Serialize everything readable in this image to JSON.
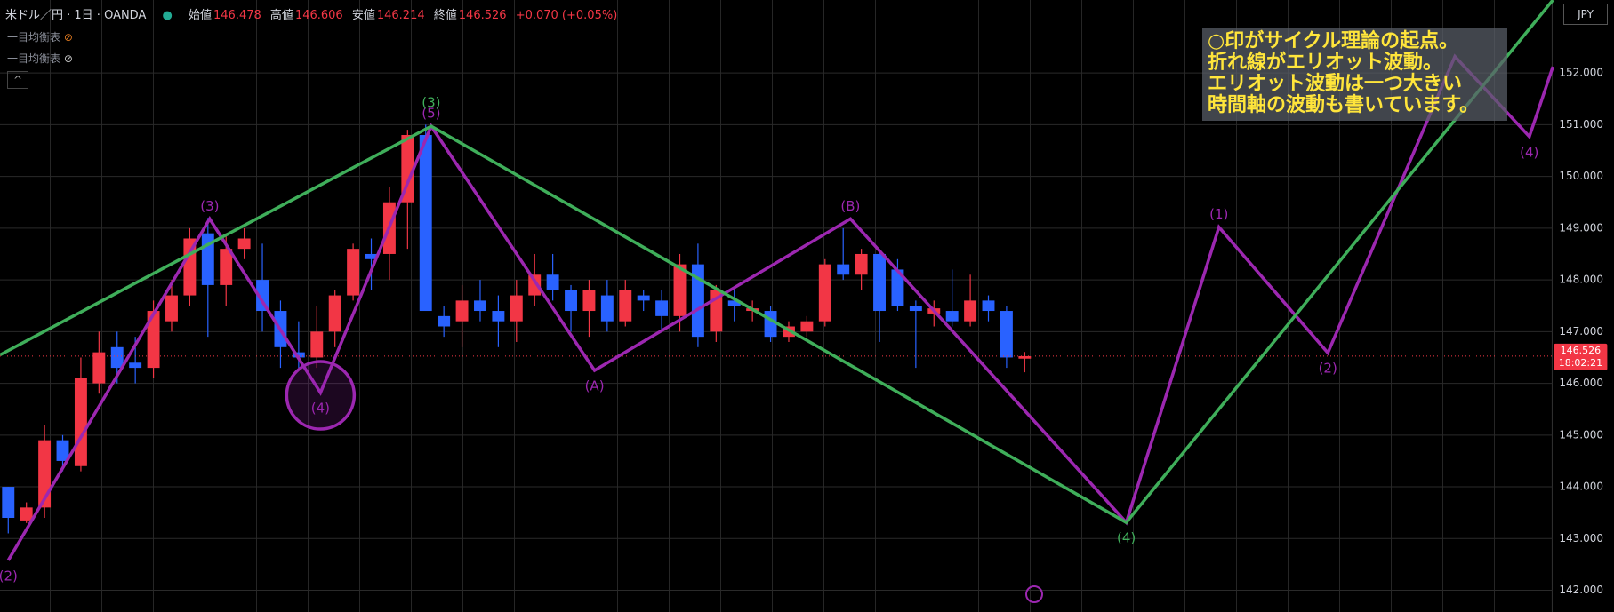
{
  "chart_data": {
    "type": "candlestick",
    "title": "米ドル／円 · 1日 · OANDA",
    "ohlc_labels": [
      "始値",
      "高値",
      "安値",
      "終値"
    ],
    "change": "+0.070 (+0.05%)",
    "indicators": [
      "一目均衡表",
      "一目均衡表"
    ],
    "currency": "JPY",
    "countdown": "18:02:21",
    "up_color": "#f23645",
    "down_color": "#2962ff",
    "open": [
      144.0,
      143.35,
      143.6,
      144.9,
      144.4,
      146.0,
      146.7,
      146.4,
      146.3,
      147.2,
      147.7,
      148.9,
      147.9,
      148.6,
      148.0,
      147.4,
      146.6,
      146.5,
      147.0,
      147.7,
      148.5,
      148.5,
      149.5,
      150.8,
      147.3,
      147.2,
      147.6,
      147.4,
      147.2,
      147.7,
      148.1,
      147.8,
      147.4,
      147.7,
      147.2,
      147.7,
      147.6,
      147.3,
      148.3,
      147.0,
      147.6,
      147.4,
      147.4,
      146.9,
      147.0,
      147.2,
      148.3,
      148.1,
      148.5,
      148.2,
      147.5,
      147.35,
      147.4,
      147.2,
      147.6,
      147.4,
      146.478
    ],
    "high": [
      144.0,
      143.7,
      145.2,
      145.0,
      146.5,
      147.0,
      147.0,
      146.9,
      147.6,
      148.0,
      149.0,
      149.2,
      148.9,
      149.0,
      148.7,
      147.6,
      147.2,
      147.5,
      147.8,
      148.7,
      148.8,
      149.8,
      150.9,
      151.0,
      147.5,
      147.9,
      148.0,
      147.7,
      148.0,
      148.5,
      148.5,
      147.9,
      148.0,
      148.0,
      148.0,
      147.8,
      147.8,
      148.5,
      148.7,
      147.9,
      147.8,
      147.6,
      147.5,
      147.2,
      147.3,
      148.4,
      149.0,
      148.6,
      148.6,
      148.4,
      147.6,
      147.6,
      148.2,
      148.1,
      147.7,
      147.5,
      146.606
    ],
    "low": [
      143.1,
      143.3,
      143.4,
      144.3,
      144.3,
      145.8,
      146.0,
      146.0,
      146.1,
      147.0,
      147.5,
      146.9,
      147.5,
      148.4,
      147.0,
      146.3,
      146.3,
      146.3,
      146.7,
      147.6,
      147.8,
      148.0,
      148.6,
      147.4,
      146.9,
      146.7,
      147.2,
      146.7,
      146.8,
      147.5,
      147.6,
      147.0,
      146.9,
      147.0,
      147.1,
      147.4,
      147.0,
      147.0,
      146.7,
      146.8,
      147.2,
      147.2,
      146.8,
      146.8,
      146.9,
      147.1,
      148.0,
      147.8,
      146.8,
      147.4,
      146.3,
      147.1,
      147.1,
      147.1,
      147.2,
      146.3,
      146.214
    ],
    "close": [
      143.4,
      143.6,
      144.9,
      144.5,
      146.1,
      146.6,
      146.3,
      146.3,
      147.4,
      147.7,
      148.8,
      147.9,
      148.6,
      148.8,
      147.4,
      146.7,
      146.5,
      147.0,
      147.7,
      148.6,
      148.4,
      149.5,
      150.8,
      147.4,
      147.1,
      147.6,
      147.4,
      147.2,
      147.7,
      148.1,
      147.8,
      147.4,
      147.8,
      147.2,
      147.8,
      147.6,
      147.3,
      148.3,
      146.9,
      147.8,
      147.5,
      147.45,
      146.9,
      147.1,
      147.2,
      148.3,
      148.1,
      148.5,
      147.4,
      147.5,
      147.4,
      147.45,
      147.2,
      147.6,
      147.4,
      146.5,
      146.526
    ],
    "ylim": [
      141.58,
      153.41
    ],
    "yticks": [
      {
        "value": 142,
        "label": "142.000"
      },
      {
        "value": 143,
        "label": "143.000"
      },
      {
        "value": 144,
        "label": "144.000"
      },
      {
        "value": 145,
        "label": "145.000"
      },
      {
        "value": 146,
        "label": "146.000"
      },
      {
        "value": 147,
        "label": "147.000"
      },
      {
        "value": 148,
        "label": "148.000"
      },
      {
        "value": 149,
        "label": "149.000"
      },
      {
        "value": 150,
        "label": "150.000"
      },
      {
        "value": 151,
        "label": "151.000"
      },
      {
        "value": 152,
        "label": "152.000"
      }
    ],
    "grid": true,
    "waves": [
      {
        "color": "#9c27b0",
        "x": [
          0,
          11.1,
          17.2,
          23.3,
          32.3,
          46.4,
          61.6,
          66.7,
          72.7,
          79.7,
          83.8,
          85.1
        ],
        "values": [
          142.58,
          149.18,
          145.82,
          150.97,
          146.25,
          149.18,
          143.31,
          149.02,
          146.59,
          152.32,
          150.77,
          152.12
        ],
        "labels": [
          "(2)",
          "(3)",
          "(4)",
          "(5)",
          "(A)",
          "(B)",
          null,
          "(1)",
          "(2)",
          null,
          "(4)",
          null
        ]
      },
      {
        "color": "#3fae5a",
        "x": [
          -0.45,
          23.3,
          61.6,
          85.1
        ],
        "values": [
          146.55,
          150.97,
          143.31,
          153.41
        ],
        "labels": [
          null,
          "(3)",
          "(4)",
          null
        ]
      }
    ],
    "annotation": [
      "○印がサイクル理論の起点。",
      "折れ線がエリオット波動。",
      "エリオット波動は一つ大きい",
      "時間軸の波動も書いています。"
    ]
  }
}
